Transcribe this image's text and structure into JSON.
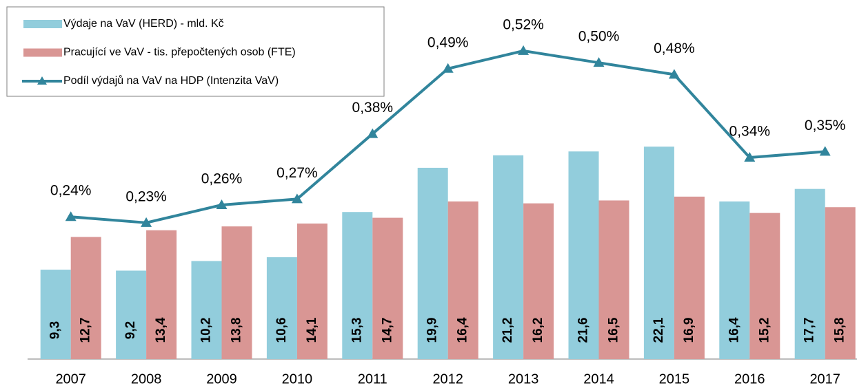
{
  "chart_data": {
    "type": "bar",
    "categories": [
      "2007",
      "2008",
      "2009",
      "2010",
      "2011",
      "2012",
      "2013",
      "2014",
      "2015",
      "2016",
      "2017"
    ],
    "series": [
      {
        "name": "Výdaje na VaV (HERD) - mld. Kč",
        "color": "#92cddc",
        "values": [
          9.3,
          9.2,
          10.2,
          10.6,
          15.3,
          19.9,
          21.2,
          21.6,
          22.1,
          16.4,
          17.7
        ],
        "value_labels": [
          "9,3",
          "9,2",
          "10,2",
          "10,6",
          "15,3",
          "19,9",
          "21,2",
          "21,6",
          "22,1",
          "16,4",
          "17,7"
        ]
      },
      {
        "name": "Pracující ve VaV - tis. přepočtených osob (FTE)",
        "color": "#d99694",
        "values": [
          12.7,
          13.4,
          13.8,
          14.1,
          14.7,
          16.4,
          16.2,
          16.5,
          16.9,
          15.2,
          15.8
        ],
        "value_labels": [
          "12,7",
          "13,4",
          "13,8",
          "14,1",
          "14,7",
          "16,4",
          "16,2",
          "16,5",
          "16,9",
          "15,2",
          "15,8"
        ]
      },
      {
        "name": "Podíl výdajů na VaV na HDP (Intenzita VaV)",
        "type": "line",
        "axis": "y2",
        "color": "#31859c",
        "values": [
          0.24,
          0.23,
          0.26,
          0.27,
          0.38,
          0.49,
          0.52,
          0.5,
          0.48,
          0.34,
          0.35
        ],
        "value_labels": [
          "0,24%",
          "0,23%",
          "0,26%",
          "0,27%",
          "0,38%",
          "0,49%",
          "0,52%",
          "0,50%",
          "0,48%",
          "0,34%",
          "0,35%"
        ]
      }
    ],
    "ylim": [
      0,
      37
    ],
    "y2lim": [
      0,
      0.6
    ],
    "legend": "top-left"
  }
}
